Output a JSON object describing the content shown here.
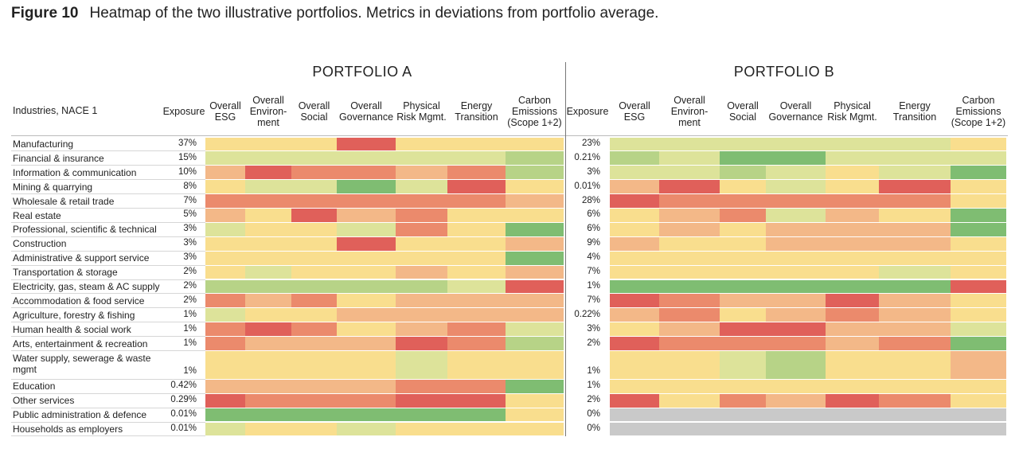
{
  "figure": {
    "number": "Figure 10",
    "caption": "Heatmap of the two illustrative portfolios. Metrics in deviations from portfolio average."
  },
  "colors": {
    "-3": "#e0605a",
    "-2": "#eb8a6c",
    "-1": "#f3b888",
    "0": "#f9de8e",
    "1": "#dde39a",
    "2": "#b7d387",
    "3": "#7fbd72",
    "na": "#c9c9c9"
  },
  "chart_data": {
    "type": "heatmap",
    "title": "Heatmap of the two illustrative portfolios. Metrics in deviations from portfolio average.",
    "row_header": "Industries, NACE 1",
    "columns": [
      "Exposure",
      "Overall\nESG",
      "Overall\nEnviron-\nment",
      "Overall\nSocial",
      "Overall\nGovernance",
      "Physical\nRisk Mgmt.",
      "Energy\nTransition",
      "Carbon\nEmissions\n(Scope 1+2)"
    ],
    "scale": "levels -3 (red, below average) to +3 (green, above average); levels estimated from cell color; na = no exposure (grey)",
    "industries": [
      "Manufacturing",
      "Financial & insurance",
      "Information & communication",
      "Mining & quarrying",
      "Wholesale & retail trade",
      "Real estate",
      "Professional, scientific & technical",
      "Construction",
      "Administrative & support service",
      "Transportation & storage",
      "Electricity, gas, steam & AC supply",
      "Accommodation & food service",
      "Agriculture, forestry & fishing",
      "Human health & social work",
      "Arts, entertainment & recreation",
      "Water supply, sewerage & waste\nmgmt",
      "Education",
      "Other services",
      "Public administration & defence",
      "Households as employers"
    ],
    "portfolios": [
      {
        "name": "PORTFOLIO A",
        "exposure": [
          "37%",
          "15%",
          "10%",
          "8%",
          "7%",
          "5%",
          "3%",
          "3%",
          "3%",
          "2%",
          "2%",
          "2%",
          "1%",
          "1%",
          "1%",
          "1%",
          "0.42%",
          "0.29%",
          "0.01%",
          "0.01%"
        ],
        "levels": [
          [
            0,
            0,
            0,
            -3,
            0,
            0,
            0
          ],
          [
            1,
            1,
            1,
            1,
            1,
            1,
            2
          ],
          [
            -1,
            -3,
            -2,
            -2,
            -1,
            -2,
            2
          ],
          [
            0,
            1,
            1,
            3,
            1,
            -3,
            0
          ],
          [
            -2,
            -2,
            -2,
            -2,
            -2,
            -2,
            -1
          ],
          [
            -1,
            0,
            -3,
            -1,
            -2,
            0,
            0
          ],
          [
            1,
            0,
            0,
            1,
            -2,
            0,
            3
          ],
          [
            0,
            0,
            0,
            -3,
            0,
            0,
            -1
          ],
          [
            0,
            0,
            0,
            0,
            0,
            0,
            3
          ],
          [
            0,
            1,
            0,
            0,
            -1,
            0,
            -1
          ],
          [
            2,
            2,
            2,
            2,
            2,
            1,
            -3
          ],
          [
            -2,
            -1,
            -2,
            0,
            -1,
            -1,
            -1
          ],
          [
            1,
            0,
            0,
            -1,
            -1,
            -1,
            -1
          ],
          [
            -2,
            -3,
            -2,
            0,
            -1,
            -2,
            1
          ],
          [
            -2,
            -1,
            -1,
            -1,
            -3,
            -2,
            2
          ],
          [
            0,
            0,
            0,
            0,
            1,
            0,
            0
          ],
          [
            -1,
            -1,
            -1,
            -1,
            -2,
            -2,
            3
          ],
          [
            -3,
            -2,
            -2,
            -2,
            -3,
            -3,
            0
          ],
          [
            3,
            3,
            3,
            3,
            3,
            3,
            0
          ],
          [
            1,
            0,
            0,
            1,
            0,
            0,
            0
          ]
        ]
      },
      {
        "name": "PORTFOLIO B",
        "exposure": [
          "23%",
          "0.21%",
          "3%",
          "0.01%",
          "28%",
          "6%",
          "6%",
          "9%",
          "4%",
          "7%",
          "1%",
          "7%",
          "0.22%",
          "3%",
          "2%",
          "1%",
          "1%",
          "2%",
          "0%",
          "0%"
        ],
        "levels": [
          [
            1,
            1,
            1,
            1,
            1,
            1,
            0
          ],
          [
            2,
            1,
            3,
            3,
            1,
            1,
            1
          ],
          [
            1,
            1,
            2,
            1,
            0,
            1,
            3
          ],
          [
            -1,
            -3,
            0,
            1,
            0,
            -3,
            0
          ],
          [
            -3,
            -2,
            -2,
            -2,
            -2,
            -2,
            0
          ],
          [
            0,
            -1,
            -2,
            1,
            -1,
            0,
            3
          ],
          [
            0,
            -1,
            0,
            -1,
            -1,
            -1,
            3
          ],
          [
            -1,
            0,
            0,
            -1,
            -1,
            -1,
            0
          ],
          [
            0,
            0,
            0,
            0,
            0,
            0,
            0
          ],
          [
            0,
            0,
            0,
            0,
            0,
            1,
            0
          ],
          [
            3,
            3,
            3,
            3,
            3,
            3,
            -3
          ],
          [
            -3,
            -2,
            -1,
            -1,
            -3,
            -1,
            0
          ],
          [
            -1,
            -2,
            0,
            -1,
            -2,
            -1,
            0
          ],
          [
            0,
            -1,
            -3,
            -3,
            -1,
            -1,
            1
          ],
          [
            -3,
            -2,
            -2,
            -2,
            -1,
            -2,
            3
          ],
          [
            0,
            0,
            1,
            2,
            0,
            0,
            -1
          ],
          [
            0,
            0,
            0,
            0,
            0,
            0,
            0
          ],
          [
            -3,
            0,
            -2,
            -1,
            -3,
            -2,
            0
          ],
          [
            "na",
            "na",
            "na",
            "na",
            "na",
            "na",
            "na"
          ],
          [
            "na",
            "na",
            "na",
            "na",
            "na",
            "na",
            "na"
          ]
        ]
      }
    ]
  }
}
